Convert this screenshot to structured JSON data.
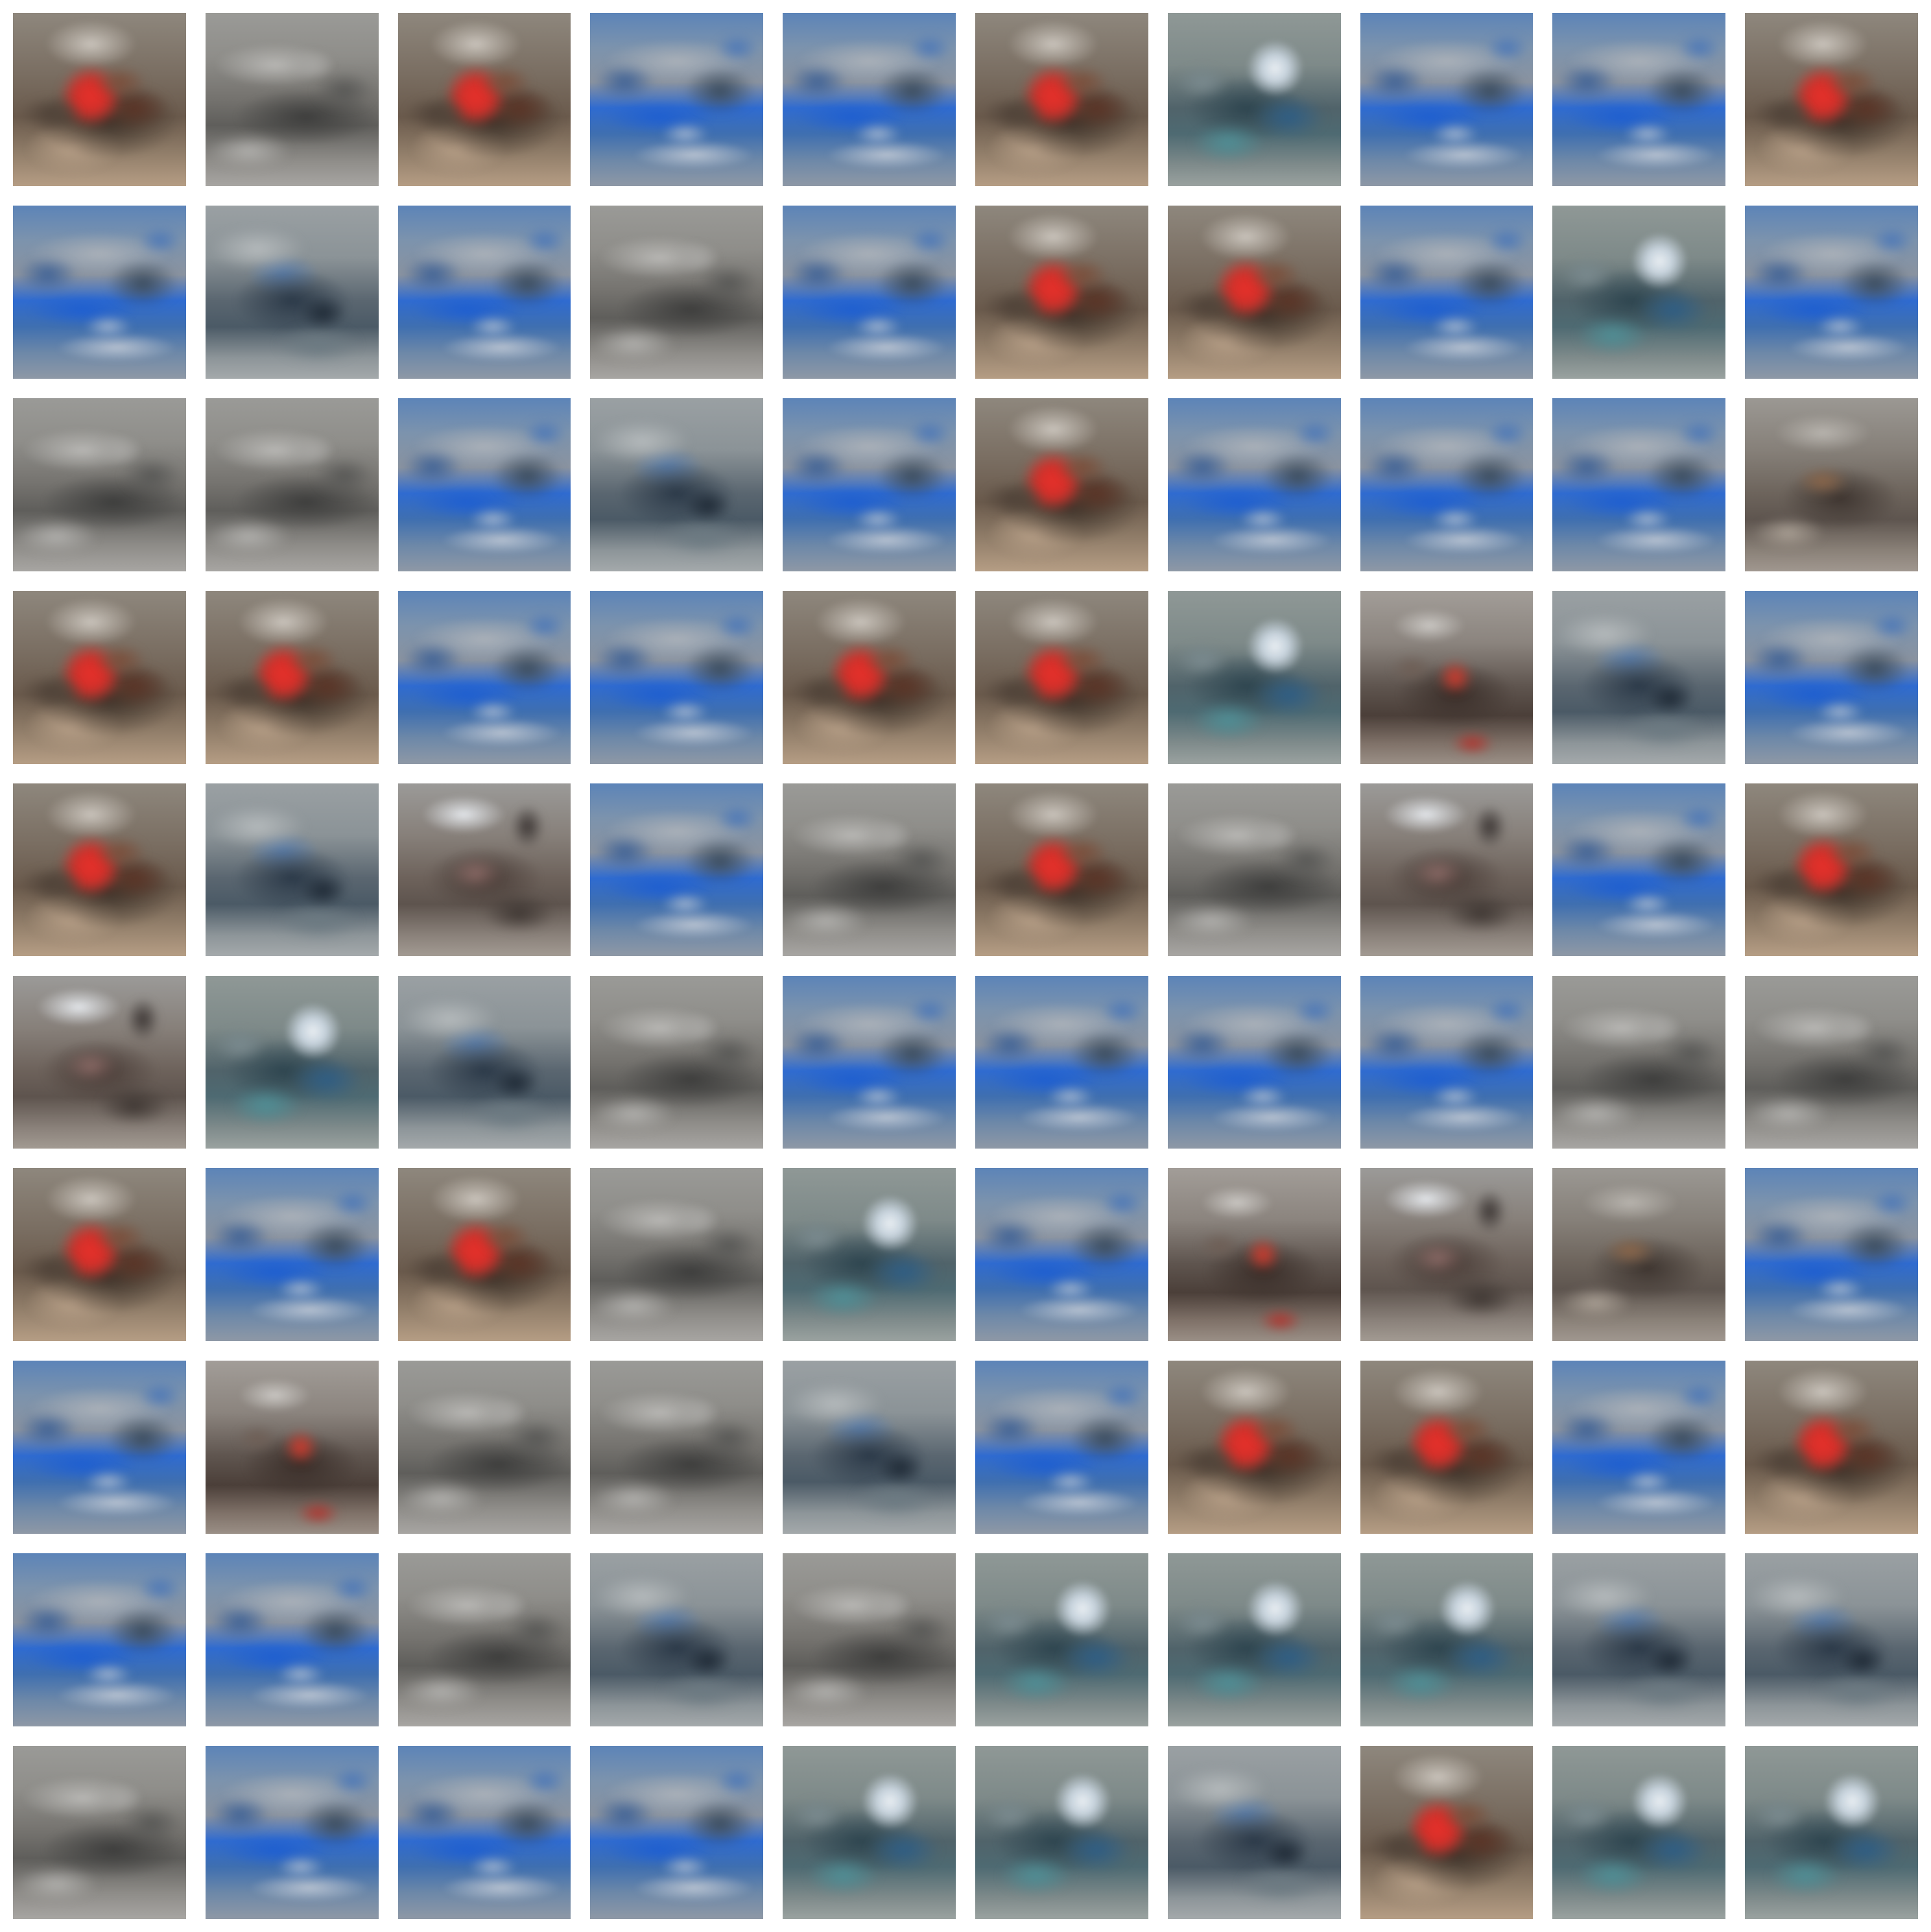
{
  "grid": {
    "rows": 10,
    "cols": 10,
    "tiles": [
      "red",
      "gray",
      "red",
      "blue",
      "blue",
      "red",
      "teal",
      "blue",
      "blue",
      "red",
      "blue",
      "bluegray",
      "blue",
      "gray",
      "blue",
      "red",
      "red",
      "blue",
      "teal",
      "blue",
      "gray",
      "gray",
      "blue",
      "bluegray",
      "blue",
      "red",
      "blue",
      "blue",
      "blue",
      "grayorange",
      "red",
      "red",
      "blue",
      "blue",
      "red",
      "red",
      "teal",
      "mixred",
      "bluegray",
      "blue",
      "red",
      "bluegray",
      "brown",
      "blue",
      "gray",
      "red",
      "gray",
      "brown",
      "blue",
      "red",
      "brown",
      "teal",
      "bluegray",
      "gray",
      "blue",
      "blue",
      "blue",
      "blue",
      "gray",
      "gray",
      "red",
      "blue",
      "red",
      "gray",
      "teal",
      "blue",
      "mixred",
      "brown",
      "grayorange",
      "blue",
      "blue",
      "mixred",
      "gray",
      "gray",
      "bluegray",
      "blue",
      "red",
      "red",
      "blue",
      "red",
      "blue",
      "blue",
      "gray",
      "bluegray",
      "gray",
      "teal",
      "teal",
      "teal",
      "bluegray",
      "bluegray",
      "gray",
      "blue",
      "blue",
      "blue",
      "teal",
      "teal",
      "bluegray",
      "red",
      "teal",
      "teal"
    ]
  }
}
